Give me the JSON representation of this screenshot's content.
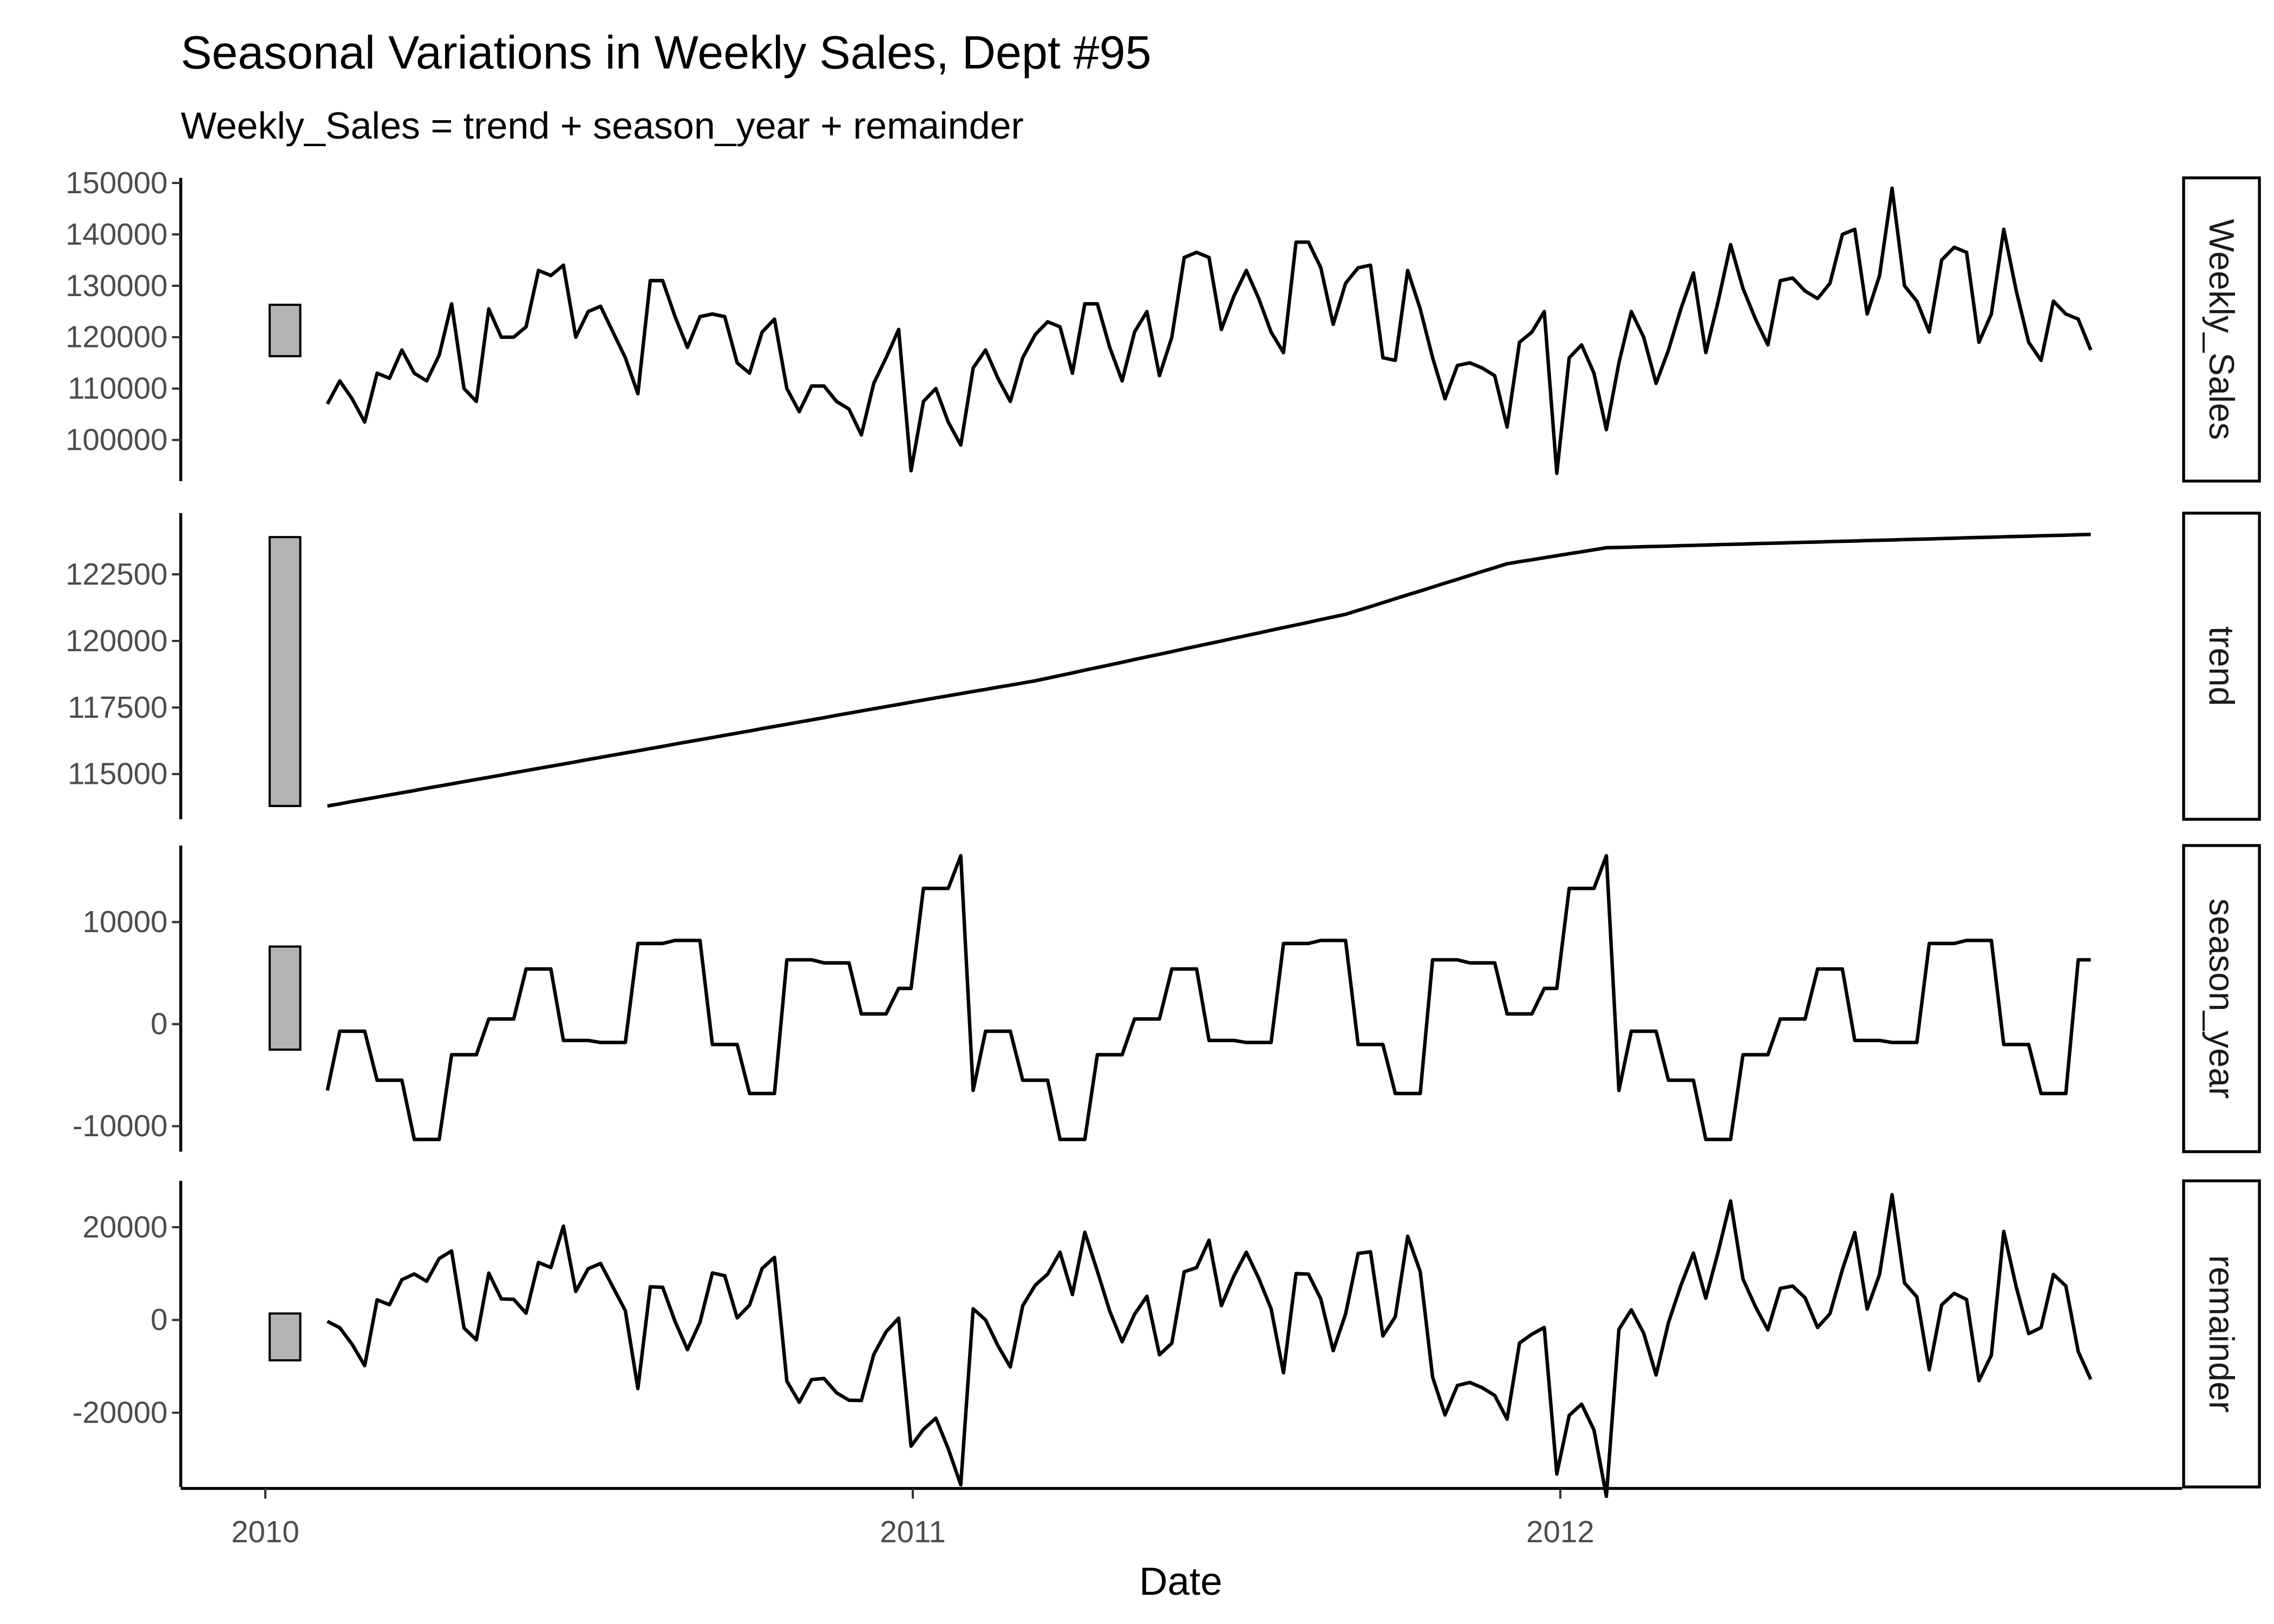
{
  "chart_data": {
    "type": "line",
    "title": "Seasonal Variations in Weekly Sales, Dept #95",
    "subtitle": "Weekly_Sales = trend + season_year + remainder",
    "xlabel": "Date",
    "x_ticks": [
      "2010",
      "2011",
      "2012"
    ],
    "x_start": "2010-02-05",
    "x_frequency": "weekly",
    "grid": false,
    "panels": [
      {
        "name": "Weekly_Sales",
        "ylim": [
          92000,
          151000
        ],
        "ticks": [
          "100000",
          "110000",
          "120000",
          "130000",
          "140000",
          "150000"
        ],
        "scale_bar": [
          116300,
          126300
        ]
      },
      {
        "name": "trend",
        "ylim": [
          113300,
          124800
        ],
        "ticks": [
          "115000",
          "117500",
          "120000",
          "122500"
        ],
        "scale_bar": [
          113800,
          123900
        ]
      },
      {
        "name": "season_year",
        "ylim": [
          -12500,
          17500
        ],
        "ticks": [
          "-10000",
          "0",
          "10000"
        ],
        "scale_bar": [
          -2500,
          7600
        ]
      },
      {
        "name": "remainder",
        "ylim": [
          -36000,
          30000
        ],
        "ticks": [
          "-20000",
          "0",
          "20000"
        ],
        "scale_bar": [
          -8700,
          1400
        ]
      }
    ],
    "weekly_sales": [
      107000,
      111500,
      108000,
      103500,
      113000,
      112000,
      117500,
      113000,
      111500,
      116500,
      126500,
      110000,
      107500,
      125500,
      120000,
      120000,
      122000,
      133000,
      132000,
      134000,
      120000,
      125000,
      126000,
      121000,
      116000,
      109000,
      131000,
      131000,
      124000,
      118000,
      124000,
      124500,
      124000,
      115000,
      113000,
      121000,
      123500,
      110000,
      105500,
      110500,
      110500,
      107500,
      106000,
      101000,
      111000,
      116000,
      121500,
      94000,
      107500,
      110000,
      103500,
      99000,
      114000,
      117500,
      112000,
      107500,
      116000,
      120500,
      123000,
      122000,
      113000,
      126500,
      126500,
      118000,
      111500,
      121000,
      125000,
      112500,
      120000,
      135500,
      136500,
      135500,
      121500,
      128000,
      133000,
      127500,
      121000,
      117000,
      138500,
      138500,
      133500,
      122500,
      130500,
      133500,
      134000,
      116000,
      115500,
      133000,
      125500,
      116000,
      108000,
      114500,
      115000,
      114000,
      112500,
      102500,
      119000,
      121000,
      125000,
      93500,
      116000,
      118500,
      113000,
      102000,
      115000,
      125000,
      120000,
      111000,
      117500,
      125500,
      132500,
      117000,
      127000,
      138000,
      129500,
      123500,
      118500,
      131000,
      131500,
      129000,
      127500,
      130500,
      140000,
      141000,
      124500,
      132000,
      149000,
      130000,
      127000,
      121000,
      135000,
      137500,
      136500,
      119000,
      124500,
      141000,
      129000,
      119000,
      115500,
      127000,
      124500,
      123500,
      117500
    ],
    "trend_knots": [
      [
        0,
        113800
      ],
      [
        47,
        117700
      ],
      [
        57,
        118500
      ],
      [
        82,
        121000
      ],
      [
        95,
        122900
      ],
      [
        103,
        123500
      ],
      [
        142,
        124000
      ]
    ],
    "season_year_pattern": [
      -6500,
      -700,
      -700,
      -700,
      -5500,
      -5500,
      -5500,
      -11300,
      -11300,
      -11300,
      -3000,
      -3000,
      -3000,
      500,
      500,
      500,
      5400,
      5400,
      5400,
      -1600,
      -1600,
      -1600,
      -1800,
      -1800,
      -1800,
      7900,
      7900,
      7900,
      8200,
      8200,
      8200,
      -2000,
      -2000,
      -2000,
      -6800,
      -6800,
      -6800,
      6300,
      6300,
      6300,
      6000,
      6000,
      6000,
      1000,
      1000,
      1000,
      3500,
      3500,
      13300,
      13300,
      13300,
      16500
    ],
    "remainder_definition": "Weekly_Sales - trend - season_year"
  }
}
